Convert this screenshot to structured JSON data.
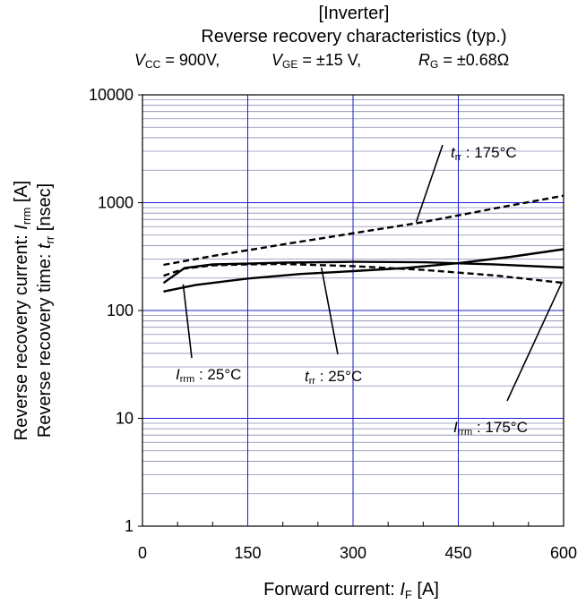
{
  "header": {
    "title_line1": "[Inverter]",
    "title_line2": "Reverse recovery characteristics  (typ.)",
    "conditions": [
      {
        "sym": "V",
        "sub": "CC",
        "val": "= 900V,"
      },
      {
        "sym": "V",
        "sub": "GE",
        "val": "= ±15 V,"
      },
      {
        "sym": "R",
        "sub": "G",
        "val": "= ±0.68Ω"
      }
    ]
  },
  "axes": {
    "xlabel_text": "Forward current: ",
    "xlabel_sym": "I",
    "xlabel_sub": "F",
    "xlabel_unit": " [A]",
    "ylabel1_text": "Reverse recovery current: ",
    "ylabel1_sym": "I",
    "ylabel1_sub": "rrm",
    "ylabel1_unit": "  [A]",
    "ylabel2_text": "Reverse recovery time: ",
    "ylabel2_sym": "t",
    "ylabel2_sub": "rr",
    "ylabel2_unit": "  [nsec]"
  },
  "chart_data": {
    "type": "line",
    "title": "Reverse recovery characteristics  (typ.)",
    "xlabel": "Forward current: IF [A]",
    "ylabel": "Reverse recovery current: Irrm [A] / Reverse recovery time: trr [nsec]",
    "xlim": [
      0,
      600
    ],
    "ylim": [
      1,
      10000
    ],
    "yscale": "log",
    "x_ticks": [
      "0",
      "150",
      "300",
      "450",
      "600"
    ],
    "y_ticks": [
      "1",
      "10",
      "100",
      "1000",
      "10000"
    ],
    "grid": true,
    "colors": {
      "major_grid": "#1c1cd4",
      "minor_grid": "#8a8ab0",
      "curve": "#000000"
    },
    "series": [
      {
        "name": "trr : 175°C",
        "style": "dashed",
        "x": [
          30,
          100,
          200,
          300,
          400,
          500,
          600
        ],
        "y": [
          265,
          320,
          410,
          520,
          660,
          880,
          1160
        ]
      },
      {
        "name": "trr : 25°C",
        "style": "solid",
        "x": [
          30,
          75,
          150,
          225,
          300,
          375,
          450,
          525,
          600
        ],
        "y": [
          150,
          172,
          198,
          218,
          232,
          248,
          275,
          315,
          370
        ]
      },
      {
        "name": "Irrm : 25°C",
        "style": "solid",
        "x": [
          30,
          60,
          100,
          150,
          200,
          300,
          400,
          500,
          600
        ],
        "y": [
          180,
          248,
          268,
          272,
          278,
          283,
          280,
          268,
          250
        ]
      },
      {
        "name": "Irrm : 175°C",
        "style": "dashed",
        "x": [
          30,
          60,
          100,
          150,
          200,
          300,
          400,
          500,
          600
        ],
        "y": [
          210,
          245,
          262,
          268,
          270,
          258,
          238,
          212,
          180
        ]
      }
    ],
    "annotations": [
      {
        "sym": "t",
        "sub": "rr",
        "text": " : 175°C"
      },
      {
        "sym": "t",
        "sub": "rr",
        "text": " : 25°C"
      },
      {
        "sym": "I",
        "sub": "rrm",
        "text": " : 25°C"
      },
      {
        "sym": "I",
        "sub": "rrm",
        "text": " : 175°C"
      }
    ]
  }
}
